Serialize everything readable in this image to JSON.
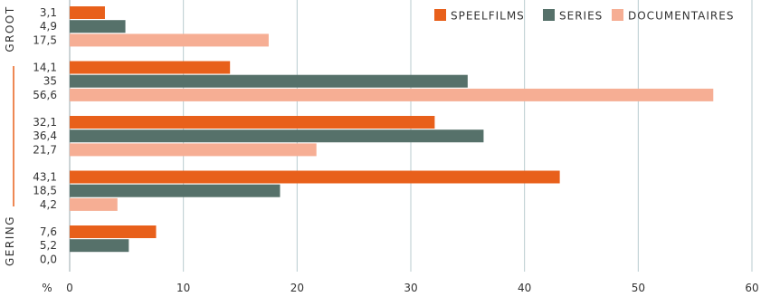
{
  "chart_data": {
    "type": "bar",
    "orientation": "horizontal",
    "xlim": [
      0,
      60
    ],
    "x_ticks": [
      0,
      10,
      20,
      30,
      40,
      50,
      60
    ],
    "x_unit_label": "%",
    "grid": true,
    "legend_position": "top-right",
    "side_labels": {
      "top": "GROOT",
      "bottom": "GERING"
    },
    "series": [
      {
        "name": "SPEELFILMS",
        "color": "#e8601b"
      },
      {
        "name": "SERIES",
        "color": "#56716a"
      },
      {
        "name": "DOCUMENTAIRES",
        "color": "#f6ae94"
      }
    ],
    "groups": [
      {
        "values": [
          3.1,
          4.9,
          17.5
        ],
        "labels": [
          "3,1",
          "4,9",
          "17,5"
        ]
      },
      {
        "values": [
          14.1,
          35,
          56.6
        ],
        "labels": [
          "14,1",
          "35",
          "56,6"
        ]
      },
      {
        "values": [
          32.1,
          36.4,
          21.7
        ],
        "labels": [
          "32,1",
          "36,4",
          "21,7"
        ]
      },
      {
        "values": [
          43.1,
          18.5,
          4.2
        ],
        "labels": [
          "43,1",
          "18,5",
          "4,2"
        ]
      },
      {
        "values": [
          7.6,
          5.2,
          0.0
        ],
        "labels": [
          "7,6",
          "5,2",
          "0,0"
        ]
      }
    ]
  }
}
